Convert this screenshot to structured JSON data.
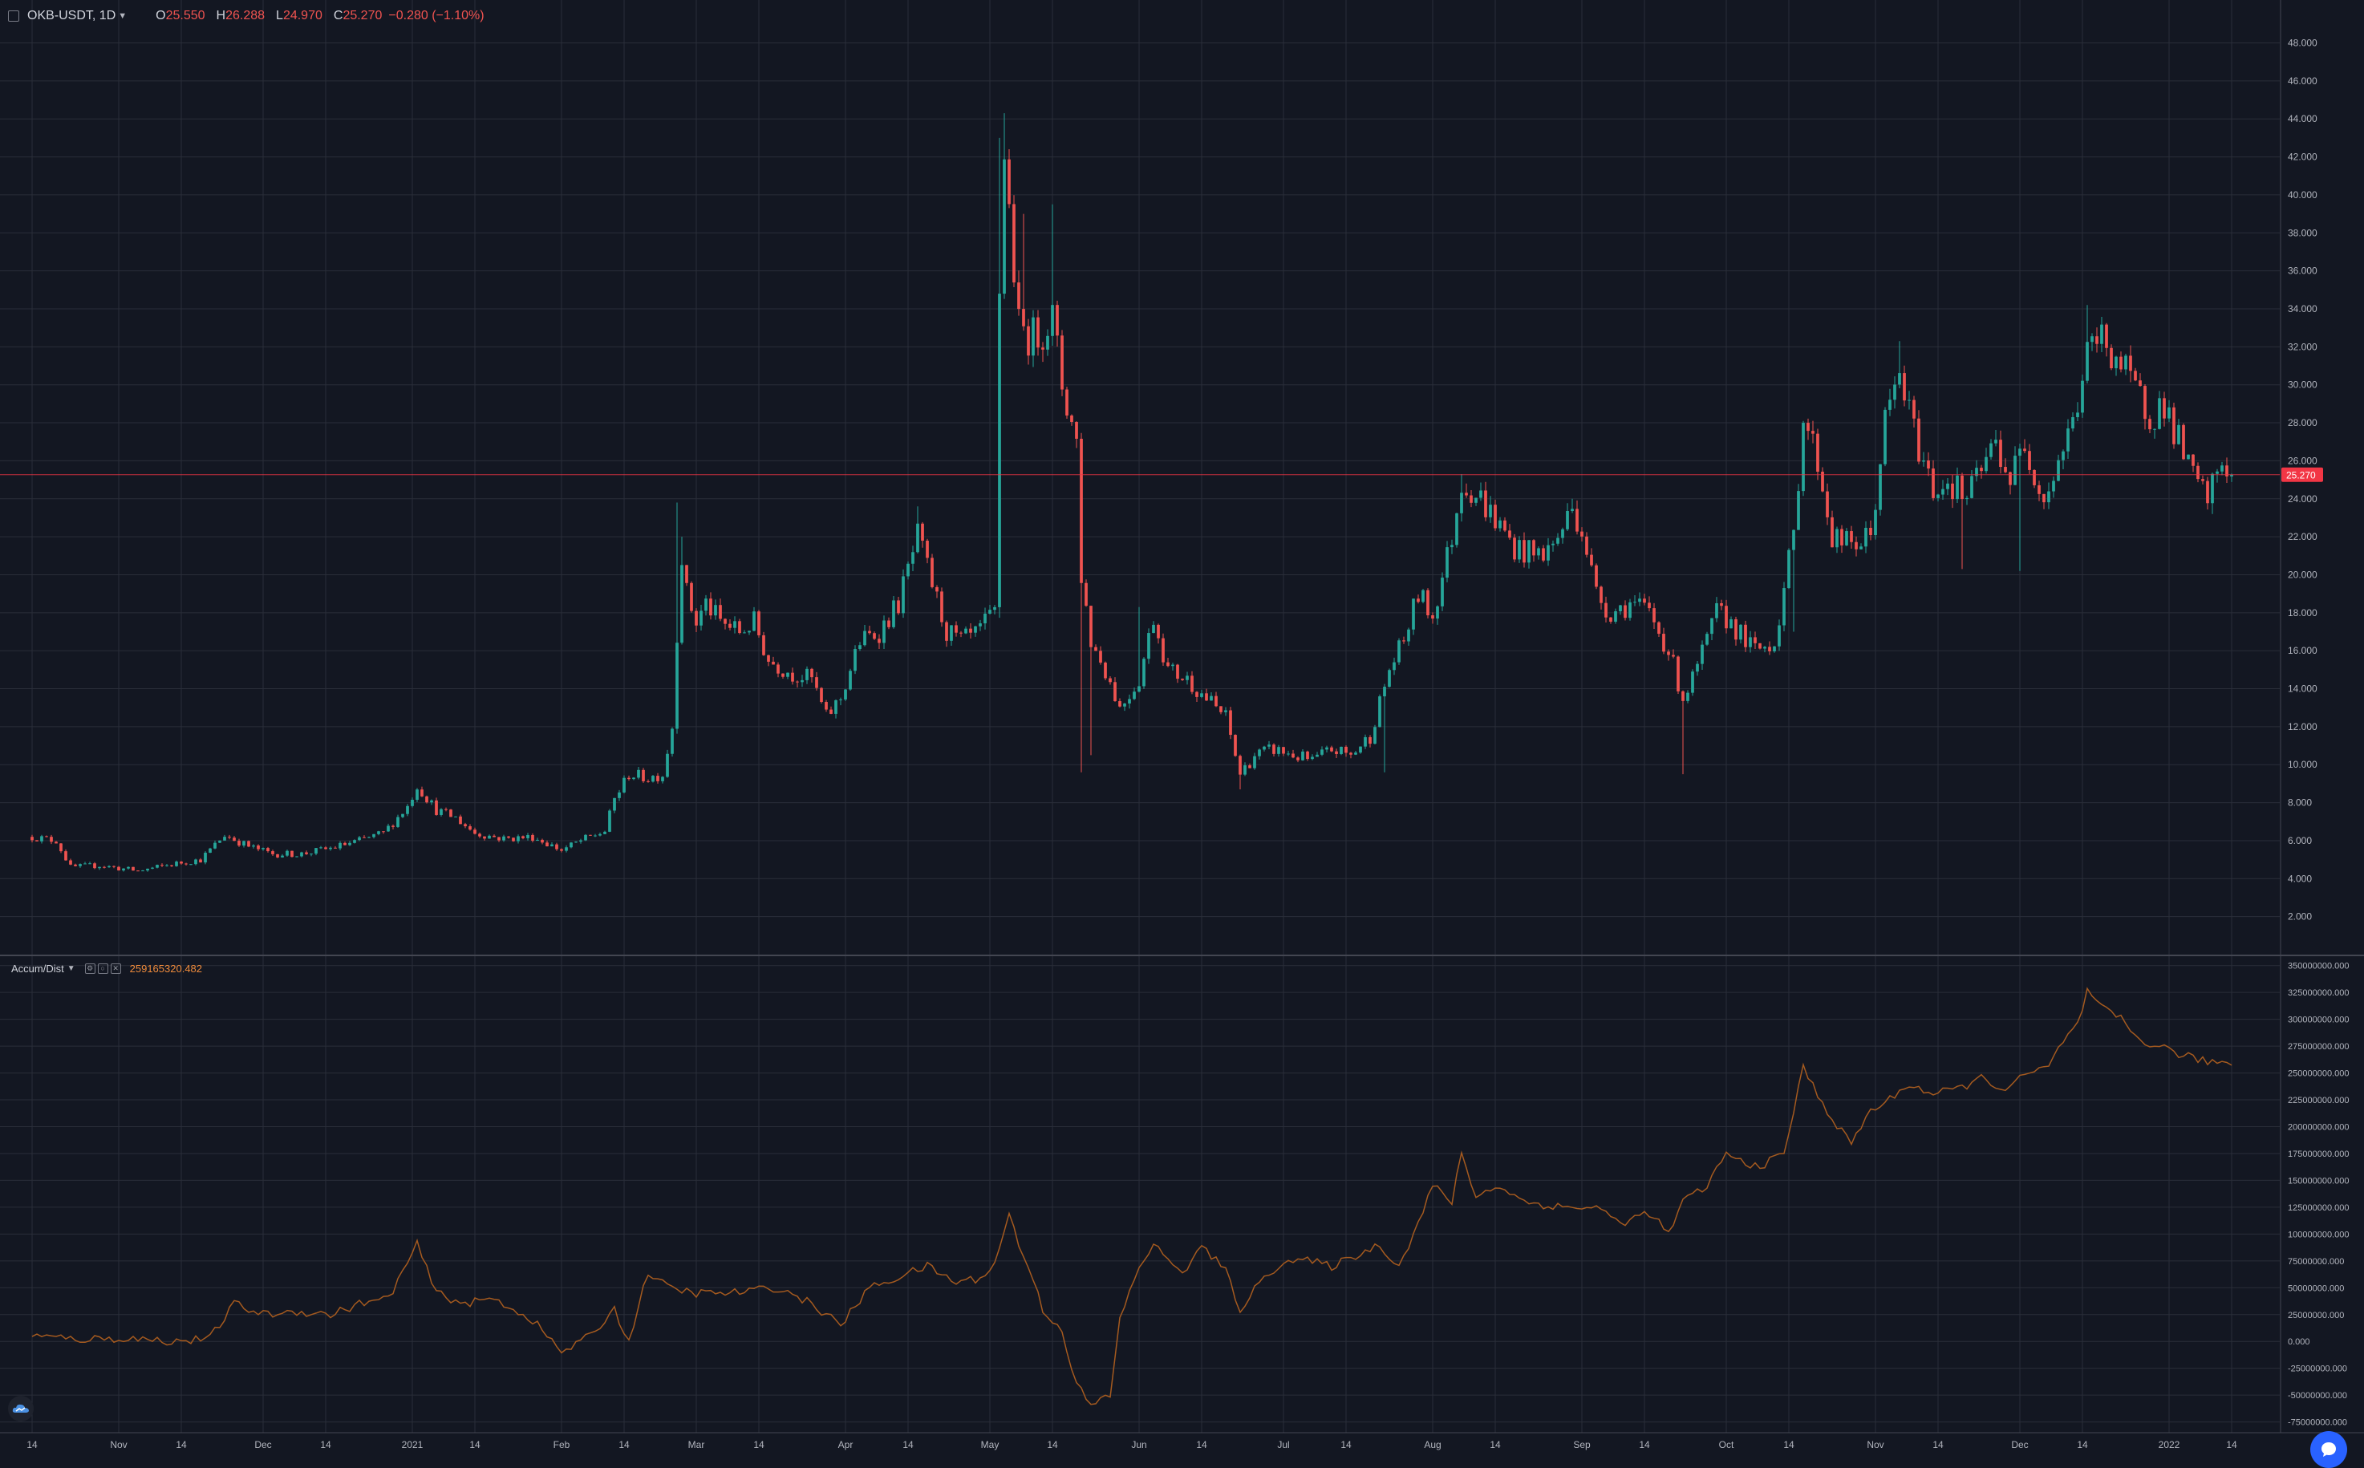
{
  "header": {
    "symbol": "OKB-USDT, 1D",
    "o_label": "O",
    "o_value": "25.550",
    "h_label": "H",
    "h_value": "26.288",
    "l_label": "L",
    "l_value": "24.970",
    "c_label": "C",
    "c_value": "25.270",
    "change": "−0.280 (−1.10%)"
  },
  "indicator": {
    "name": "Accum/Dist",
    "value": "259165320.482"
  },
  "colors": {
    "background": "#131722",
    "grid": "#2a2e39",
    "up": "#26a69a",
    "down": "#ef5350",
    "ad_line": "#a55a1f",
    "price_line": "#f23645",
    "label_text": "#b2b5be"
  },
  "chart_data": [
    {
      "type": "candlestick",
      "title": "OKB-USDT, 1D",
      "price_axis_labels": [
        "48.000",
        "46.000",
        "44.000",
        "42.000",
        "40.000",
        "38.000",
        "36.000",
        "34.000",
        "32.000",
        "30.000",
        "28.000",
        "26.000",
        "24.000",
        "22.000",
        "20.000",
        "18.000",
        "16.000",
        "14.000",
        "12.000",
        "10.000",
        "8.000",
        "6.000",
        "4.000",
        "2.000"
      ],
      "ylim": [
        0,
        49.5
      ],
      "last_price": "25.270",
      "last_price_value": 25.27,
      "time_axis_labels": [
        "14",
        "Nov",
        "14",
        "Dec",
        "14",
        "2021",
        "14",
        "Feb",
        "14",
        "Mar",
        "14",
        "Apr",
        "14",
        "May",
        "14",
        "Jun",
        "14",
        "Jul",
        "14",
        "Aug",
        "14",
        "Sep",
        "14",
        "Oct",
        "14",
        "Nov",
        "14",
        "Dec",
        "14",
        "2022",
        "14"
      ],
      "time_axis_label_days": [
        0,
        18,
        31,
        48,
        61,
        79,
        92,
        110,
        123,
        138,
        151,
        169,
        182,
        199,
        212,
        230,
        243,
        260,
        273,
        291,
        304,
        322,
        335,
        352,
        365,
        383,
        396,
        413,
        426,
        444,
        457
      ],
      "first_day": "2020-10-14",
      "last_day": "2022-01-14",
      "close_keypoints": [
        [
          0,
          6.2
        ],
        [
          5,
          6.0
        ],
        [
          8,
          4.6
        ],
        [
          14,
          4.7
        ],
        [
          22,
          4.4
        ],
        [
          30,
          4.8
        ],
        [
          35,
          5.0
        ],
        [
          40,
          6.3
        ],
        [
          45,
          5.7
        ],
        [
          50,
          5.3
        ],
        [
          56,
          5.3
        ],
        [
          62,
          5.6
        ],
        [
          68,
          6.0
        ],
        [
          73,
          6.4
        ],
        [
          78,
          7.8
        ],
        [
          80,
          8.9
        ],
        [
          84,
          7.6
        ],
        [
          88,
          7.2
        ],
        [
          92,
          6.4
        ],
        [
          98,
          6.1
        ],
        [
          104,
          6.2
        ],
        [
          110,
          5.5
        ],
        [
          114,
          6.0
        ],
        [
          119,
          6.5
        ],
        [
          121,
          8.2
        ],
        [
          124,
          9.5
        ],
        [
          128,
          9.3
        ],
        [
          131,
          9.5
        ],
        [
          133,
          12.0
        ],
        [
          134,
          17.0
        ],
        [
          135,
          21.0
        ],
        [
          136,
          19.0
        ],
        [
          138,
          17.5
        ],
        [
          140,
          18.5
        ],
        [
          143,
          17.5
        ],
        [
          147,
          17.0
        ],
        [
          150,
          17.5
        ],
        [
          153,
          15.5
        ],
        [
          158,
          14.8
        ],
        [
          162,
          14.5
        ],
        [
          165,
          12.5
        ],
        [
          168,
          13.5
        ],
        [
          172,
          16.5
        ],
        [
          176,
          17.0
        ],
        [
          180,
          18.5
        ],
        [
          184,
          22.0
        ],
        [
          187,
          19.5
        ],
        [
          190,
          17.0
        ],
        [
          193,
          16.5
        ],
        [
          196,
          16.8
        ],
        [
          200,
          18.0
        ],
        [
          201,
          35.0
        ],
        [
          202,
          42.3
        ],
        [
          205,
          33.0
        ],
        [
          208,
          32.5
        ],
        [
          212,
          33.5
        ],
        [
          214,
          30.0
        ],
        [
          217,
          27.0
        ],
        [
          218,
          20.0
        ],
        [
          220,
          16.5
        ],
        [
          223,
          15.0
        ],
        [
          226,
          13.0
        ],
        [
          230,
          14.5
        ],
        [
          233,
          17.8
        ],
        [
          236,
          15.0
        ],
        [
          240,
          14.5
        ],
        [
          244,
          13.5
        ],
        [
          248,
          12.5
        ],
        [
          251,
          9.5
        ],
        [
          254,
          10.5
        ],
        [
          258,
          10.8
        ],
        [
          262,
          10.5
        ],
        [
          266,
          10.2
        ],
        [
          270,
          10.8
        ],
        [
          274,
          10.5
        ],
        [
          278,
          11.5
        ],
        [
          282,
          15.0
        ],
        [
          285,
          16.5
        ],
        [
          288,
          19.0
        ],
        [
          291,
          17.8
        ],
        [
          295,
          22.0
        ],
        [
          297,
          25.0
        ],
        [
          301,
          24.0
        ],
        [
          305,
          22.5
        ],
        [
          308,
          21.5
        ],
        [
          312,
          21.0
        ],
        [
          316,
          21.5
        ],
        [
          320,
          23.5
        ],
        [
          322,
          22.5
        ],
        [
          325,
          19.0
        ],
        [
          328,
          18.0
        ],
        [
          332,
          18.5
        ],
        [
          336,
          18.0
        ],
        [
          340,
          16.0
        ],
        [
          343,
          13.5
        ],
        [
          345,
          14.5
        ],
        [
          348,
          16.5
        ],
        [
          350,
          18.0
        ],
        [
          353,
          17.5
        ],
        [
          356,
          16.5
        ],
        [
          358,
          16.0
        ],
        [
          362,
          16.5
        ],
        [
          366,
          22.0
        ],
        [
          368,
          28.5
        ],
        [
          371,
          26.0
        ],
        [
          374,
          22.0
        ],
        [
          378,
          21.5
        ],
        [
          382,
          22.0
        ],
        [
          385,
          28.0
        ],
        [
          388,
          30.5
        ],
        [
          391,
          27.5
        ],
        [
          395,
          24.5
        ],
        [
          398,
          25.0
        ],
        [
          402,
          24.0
        ],
        [
          405,
          25.5
        ],
        [
          408,
          27.0
        ],
        [
          411,
          25.0
        ],
        [
          414,
          27.0
        ],
        [
          418,
          24.0
        ],
        [
          421,
          26.0
        ],
        [
          424,
          28.0
        ],
        [
          427,
          31.5
        ],
        [
          430,
          32.5
        ],
        [
          433,
          31.5
        ],
        [
          436,
          30.0
        ],
        [
          440,
          28.5
        ],
        [
          443,
          29.0
        ],
        [
          446,
          27.0
        ],
        [
          449,
          25.0
        ],
        [
          452,
          24.0
        ],
        [
          455,
          26.0
        ],
        [
          457,
          25.27
        ]
      ],
      "spike_highs": [
        [
          134,
          23.8
        ],
        [
          135,
          22.0
        ],
        [
          184,
          23.6
        ],
        [
          201,
          43.0
        ],
        [
          202,
          44.3
        ],
        [
          206,
          39.0
        ],
        [
          212,
          39.5
        ],
        [
          230,
          18.3
        ],
        [
          297,
          25.3
        ],
        [
          320,
          24.0
        ],
        [
          388,
          32.3
        ],
        [
          427,
          34.2
        ],
        [
          430,
          33.0
        ]
      ],
      "spike_lows": [
        [
          218,
          9.6
        ],
        [
          220,
          10.5
        ],
        [
          251,
          8.7
        ],
        [
          281,
          9.6
        ],
        [
          343,
          9.5
        ],
        [
          366,
          17.0
        ],
        [
          401,
          20.3
        ],
        [
          413,
          20.2
        ],
        [
          453,
          23.2
        ]
      ]
    },
    {
      "type": "line",
      "title": "Accum/Dist",
      "axis_labels": [
        "350000000.000",
        "325000000.000",
        "300000000.000",
        "275000000.000",
        "250000000.000",
        "225000000.000",
        "200000000.000",
        "175000000.000",
        "150000000.000",
        "125000000.000",
        "100000000.000",
        "75000000.000",
        "50000000.000",
        "25000000.000",
        "0.000",
        "-25000000.000",
        "-50000000.000",
        "-75000000.000"
      ],
      "ylim": [
        -85000000,
        358000000
      ],
      "current_value": "259165320.482",
      "points": [
        [
          0,
          5000000
        ],
        [
          10,
          2000000
        ],
        [
          20,
          3000000
        ],
        [
          30,
          0
        ],
        [
          37,
          3000000
        ],
        [
          42,
          35000000
        ],
        [
          48,
          25000000
        ],
        [
          55,
          28000000
        ],
        [
          62,
          25000000
        ],
        [
          68,
          35000000
        ],
        [
          74,
          40000000
        ],
        [
          80,
          90000000
        ],
        [
          84,
          45000000
        ],
        [
          90,
          35000000
        ],
        [
          96,
          40000000
        ],
        [
          104,
          20000000
        ],
        [
          110,
          -10000000
        ],
        [
          116,
          5000000
        ],
        [
          121,
          30000000
        ],
        [
          124,
          0
        ],
        [
          128,
          65000000
        ],
        [
          132,
          50000000
        ],
        [
          138,
          45000000
        ],
        [
          145,
          45000000
        ],
        [
          155,
          50000000
        ],
        [
          162,
          35000000
        ],
        [
          168,
          15000000
        ],
        [
          174,
          50000000
        ],
        [
          180,
          60000000
        ],
        [
          186,
          70000000
        ],
        [
          192,
          55000000
        ],
        [
          198,
          60000000
        ],
        [
          201,
          85000000
        ],
        [
          203,
          120000000
        ],
        [
          205,
          90000000
        ],
        [
          207,
          70000000
        ],
        [
          210,
          30000000
        ],
        [
          214,
          10000000
        ],
        [
          217,
          -40000000
        ],
        [
          220,
          -60000000
        ],
        [
          224,
          -50000000
        ],
        [
          226,
          20000000
        ],
        [
          230,
          70000000
        ],
        [
          233,
          90000000
        ],
        [
          236,
          75000000
        ],
        [
          240,
          65000000
        ],
        [
          243,
          90000000
        ],
        [
          248,
          65000000
        ],
        [
          251,
          30000000
        ],
        [
          256,
          60000000
        ],
        [
          260,
          75000000
        ],
        [
          265,
          75000000
        ],
        [
          270,
          70000000
        ],
        [
          275,
          80000000
        ],
        [
          280,
          90000000
        ],
        [
          284,
          70000000
        ],
        [
          288,
          110000000
        ],
        [
          291,
          145000000
        ],
        [
          295,
          130000000
        ],
        [
          297,
          175000000
        ],
        [
          300,
          135000000
        ],
        [
          305,
          145000000
        ],
        [
          310,
          130000000
        ],
        [
          318,
          125000000
        ],
        [
          325,
          125000000
        ],
        [
          330,
          110000000
        ],
        [
          336,
          120000000
        ],
        [
          340,
          100000000
        ],
        [
          343,
          130000000
        ],
        [
          348,
          145000000
        ],
        [
          352,
          175000000
        ],
        [
          356,
          165000000
        ],
        [
          360,
          165000000
        ],
        [
          364,
          175000000
        ],
        [
          368,
          255000000
        ],
        [
          371,
          230000000
        ],
        [
          375,
          200000000
        ],
        [
          378,
          185000000
        ],
        [
          382,
          215000000
        ],
        [
          386,
          225000000
        ],
        [
          390,
          240000000
        ],
        [
          395,
          230000000
        ],
        [
          400,
          235000000
        ],
        [
          405,
          245000000
        ],
        [
          410,
          235000000
        ],
        [
          415,
          250000000
        ],
        [
          419,
          255000000
        ],
        [
          422,
          280000000
        ],
        [
          425,
          295000000
        ],
        [
          427,
          325000000
        ],
        [
          430,
          310000000
        ],
        [
          434,
          300000000
        ],
        [
          438,
          280000000
        ],
        [
          442,
          275000000
        ],
        [
          446,
          268000000
        ],
        [
          450,
          262000000
        ],
        [
          454,
          260000000
        ],
        [
          457,
          259000000
        ]
      ]
    }
  ]
}
